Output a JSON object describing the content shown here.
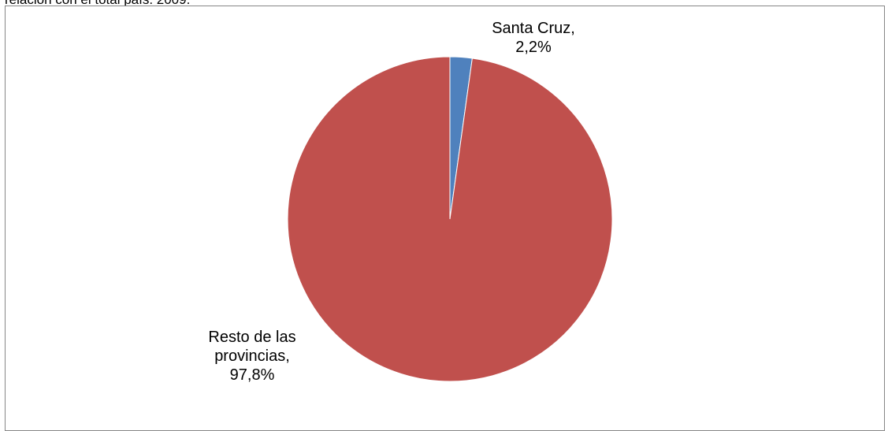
{
  "figure": {
    "caption_partial": "relación con el total país. 2009."
  },
  "chart_data": {
    "type": "pie",
    "title": "",
    "slices": [
      {
        "name": "Santa Cruz",
        "value": 2.2,
        "value_label": "2,2%",
        "label_lines": [
          "Santa Cruz,",
          "2,2%"
        ],
        "color": "#4f81bd"
      },
      {
        "name": "Resto de las provincias",
        "value": 97.8,
        "value_label": "97,8%",
        "label_lines": [
          "Resto de las",
          "provincias,",
          "97,8%"
        ],
        "color": "#c0504d"
      }
    ],
    "start_angle": "12 o'clock",
    "direction": "clockwise",
    "legend": "none"
  }
}
